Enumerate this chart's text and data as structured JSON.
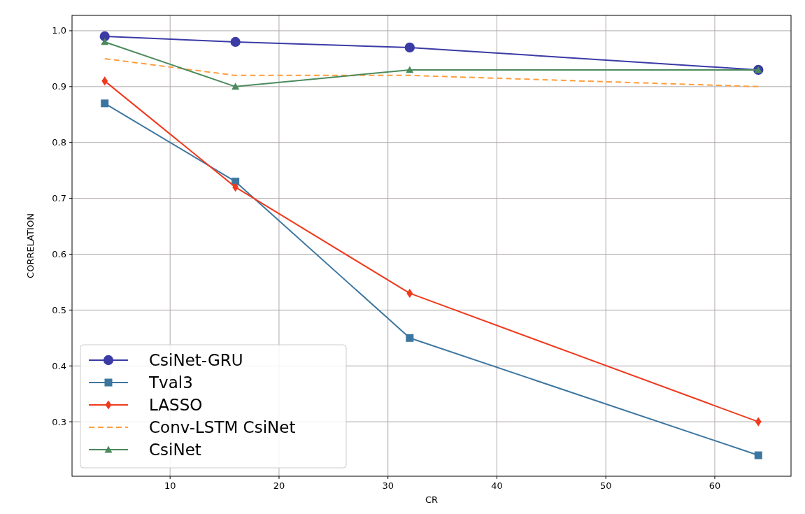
{
  "chart_data": {
    "type": "line",
    "xlabel": "CR",
    "ylabel": "CORRELATION",
    "x": [
      4,
      16,
      32,
      64
    ],
    "xlim": [
      1,
      67
    ],
    "xticks": [
      10,
      20,
      30,
      40,
      50,
      60
    ],
    "ylim": [
      0.2025,
      1.0275
    ],
    "yticks": [
      {
        "value": 0.3,
        "label": "0.3"
      },
      {
        "value": 0.4,
        "label": "0.4"
      },
      {
        "value": 0.5,
        "label": "0.5"
      },
      {
        "value": 0.6,
        "label": "0.6"
      },
      {
        "value": 0.7,
        "label": "0.7"
      },
      {
        "value": 0.8,
        "label": "0.8"
      },
      {
        "value": 0.9,
        "label": "0.9"
      },
      {
        "value": 1.0,
        "label": "1.0"
      }
    ],
    "grid": true,
    "legend": "bottom left",
    "series": [
      {
        "name": "CsiNet-GRU",
        "color": "#3b3ba6",
        "marker": "circle",
        "line_style": "solid",
        "values": [
          0.99,
          0.98,
          0.97,
          0.93
        ]
      },
      {
        "name": "Tval3",
        "color": "#3c76a0",
        "marker": "square",
        "line_style": "solid",
        "values": [
          0.87,
          0.73,
          0.45,
          0.24
        ]
      },
      {
        "name": "LASSO",
        "color": "#f03a1e",
        "marker": "diamond",
        "line_style": "solid",
        "values": [
          0.91,
          0.72,
          0.53,
          0.3
        ]
      },
      {
        "name": "Conv-LSTM CsiNet",
        "color": "#ff9e3d",
        "marker": "none",
        "line_style": "dashed",
        "values": [
          0.95,
          0.92,
          0.92,
          0.9
        ]
      },
      {
        "name": "CsiNet",
        "color": "#4b8a5c",
        "marker": "triangle",
        "line_style": "solid",
        "values": [
          0.98,
          0.9,
          0.93,
          0.93
        ]
      }
    ]
  }
}
